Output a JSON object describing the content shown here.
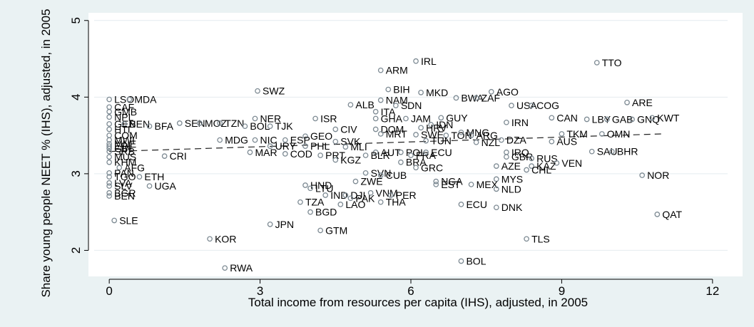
{
  "chart_data": {
    "type": "scatter",
    "title": "",
    "xlabel": "Total income from resources per capita (IHS), adjusted, in 2005",
    "ylabel": "Share young people NEET % (IHS), adjusted, in 2005",
    "xlim": [
      -0.3,
      12.3
    ],
    "ylim": [
      1.66,
      5.1
    ],
    "xticks": [
      0,
      3,
      6,
      9,
      12
    ],
    "yticks": [
      2,
      3,
      4,
      5
    ],
    "xtick_labels": [
      "0",
      "3",
      "6",
      "9",
      "12"
    ],
    "ytick_labels": [
      "2",
      "3",
      "4",
      "5"
    ],
    "grid": "horizontal",
    "fit_line": {
      "style": "dashed",
      "x": [
        0,
        11
      ],
      "y": [
        3.29,
        3.52
      ]
    },
    "points": [
      {
        "label": "IRL",
        "x": 6.1,
        "y": 4.47
      },
      {
        "label": "TTO",
        "x": 9.7,
        "y": 4.45
      },
      {
        "label": "ARM",
        "x": 5.4,
        "y": 4.35
      },
      {
        "label": "SWZ",
        "x": 2.95,
        "y": 4.08
      },
      {
        "label": "BIH",
        "x": 5.55,
        "y": 4.1
      },
      {
        "label": "MKD",
        "x": 6.2,
        "y": 4.06
      },
      {
        "label": "AGO",
        "x": 7.6,
        "y": 4.07
      },
      {
        "label": "LSO",
        "x": 0.0,
        "y": 3.97
      },
      {
        "label": "MDA",
        "x": 0.4,
        "y": 3.97
      },
      {
        "label": "BWA",
        "x": 6.9,
        "y": 3.99
      },
      {
        "label": "ZAF",
        "x": 7.3,
        "y": 3.99
      },
      {
        "label": "NAM",
        "x": 5.4,
        "y": 3.96
      },
      {
        "label": "ARE",
        "x": 10.3,
        "y": 3.93
      },
      {
        "label": "ALB",
        "x": 4.8,
        "y": 3.9
      },
      {
        "label": "SDN",
        "x": 5.7,
        "y": 3.89
      },
      {
        "label": "CAF",
        "x": 0.0,
        "y": 3.87
      },
      {
        "label": "USA",
        "x": 8.0,
        "y": 3.89
      },
      {
        "label": "COG",
        "x": 8.4,
        "y": 3.89
      },
      {
        "label": "GMB",
        "x": 0.0,
        "y": 3.81
      },
      {
        "label": "ITA",
        "x": 5.3,
        "y": 3.81
      },
      {
        "label": "NPL",
        "x": 0.0,
        "y": 3.74
      },
      {
        "label": "GHA",
        "x": 5.3,
        "y": 3.72
      },
      {
        "label": "JAM",
        "x": 5.9,
        "y": 3.72
      },
      {
        "label": "MDG",
        "x": 2.2,
        "y": 3.44
      },
      {
        "label": "GUY",
        "x": 6.6,
        "y": 3.73
      },
      {
        "label": "CAN",
        "x": 8.8,
        "y": 3.73
      },
      {
        "label": "LBY",
        "x": 9.5,
        "y": 3.71
      },
      {
        "label": "GAB",
        "x": 9.9,
        "y": 3.71
      },
      {
        "label": "GNQ",
        "x": 10.4,
        "y": 3.71
      },
      {
        "label": "KWT",
        "x": 10.8,
        "y": 3.73
      },
      {
        "label": "NER",
        "x": 2.9,
        "y": 3.72
      },
      {
        "label": "ISR",
        "x": 4.1,
        "y": 3.72
      },
      {
        "label": "GEN",
        "x": 0.0,
        "y": 3.65
      },
      {
        "label": "SEN",
        "x": 1.4,
        "y": 3.66
      },
      {
        "label": "MOZ",
        "x": 1.8,
        "y": 3.66
      },
      {
        "label": "BEN",
        "x": 0.3,
        "y": 3.65
      },
      {
        "label": "TZN",
        "x": 2.2,
        "y": 3.66
      },
      {
        "label": "BOL",
        "x": 2.7,
        "y": 3.62
      },
      {
        "label": "IRN",
        "x": 7.9,
        "y": 3.67
      },
      {
        "label": "BFA",
        "x": 0.8,
        "y": 3.62
      },
      {
        "label": "TJK",
        "x": 3.2,
        "y": 3.62
      },
      {
        "label": "IDN",
        "x": 6.4,
        "y": 3.64
      },
      {
        "label": "HRV",
        "x": 6.2,
        "y": 3.6
      },
      {
        "label": "CIV",
        "x": 4.5,
        "y": 3.58
      },
      {
        "label": "DOM",
        "x": 5.3,
        "y": 3.58
      },
      {
        "label": "HTI",
        "x": 0.0,
        "y": 3.58
      },
      {
        "label": "TKM",
        "x": 9.0,
        "y": 3.52
      },
      {
        "label": "OMN",
        "x": 9.8,
        "y": 3.52
      },
      {
        "label": "COM",
        "x": 0.0,
        "y": 3.5
      },
      {
        "label": "GEO",
        "x": 3.9,
        "y": 3.49
      },
      {
        "label": "MRT",
        "x": 5.4,
        "y": 3.52
      },
      {
        "label": "SWE",
        "x": 6.1,
        "y": 3.51
      },
      {
        "label": "TON",
        "x": 6.7,
        "y": 3.5
      },
      {
        "label": "MNG",
        "x": 7.0,
        "y": 3.54
      },
      {
        "label": "ARG",
        "x": 7.2,
        "y": 3.5
      },
      {
        "label": "MWI",
        "x": 0.0,
        "y": 3.44
      },
      {
        "label": "NIC",
        "x": 2.9,
        "y": 3.44
      },
      {
        "label": "ESP",
        "x": 3.5,
        "y": 3.44
      },
      {
        "label": "SVK",
        "x": 4.5,
        "y": 3.42
      },
      {
        "label": "TUN",
        "x": 6.3,
        "y": 3.43
      },
      {
        "label": "NZL",
        "x": 7.3,
        "y": 3.41
      },
      {
        "label": "DZA",
        "x": 7.8,
        "y": 3.44
      },
      {
        "label": "AUS",
        "x": 8.8,
        "y": 3.42
      },
      {
        "label": "MNE",
        "x": 0.0,
        "y": 3.39
      },
      {
        "label": "URY",
        "x": 3.2,
        "y": 3.36
      },
      {
        "label": "PHL",
        "x": 3.9,
        "y": 3.36
      },
      {
        "label": "MLI",
        "x": 4.7,
        "y": 3.35
      },
      {
        "label": "ERI",
        "x": 0.0,
        "y": 3.36
      },
      {
        "label": "MAR",
        "x": 2.8,
        "y": 3.28
      },
      {
        "label": "COD",
        "x": 3.5,
        "y": 3.26
      },
      {
        "label": "AUT",
        "x": 5.3,
        "y": 3.28
      },
      {
        "label": "GIN",
        "x": 0.0,
        "y": 3.33
      },
      {
        "label": "CRI",
        "x": 1.1,
        "y": 3.23
      },
      {
        "label": "PRT",
        "x": 4.2,
        "y": 3.24
      },
      {
        "label": "BLR",
        "x": 5.1,
        "y": 3.24
      },
      {
        "label": "POL",
        "x": 5.8,
        "y": 3.28
      },
      {
        "label": "FRA",
        "x": 6.0,
        "y": 3.24
      },
      {
        "label": "ECU",
        "x": 6.3,
        "y": 3.28
      },
      {
        "label": "IRQ",
        "x": 7.9,
        "y": 3.28
      },
      {
        "label": "GBR",
        "x": 7.9,
        "y": 3.22
      },
      {
        "label": "SAU",
        "x": 9.6,
        "y": 3.29
      },
      {
        "label": "BHR",
        "x": 10.0,
        "y": 3.29
      },
      {
        "label": "SRB",
        "x": 0.0,
        "y": 3.29
      },
      {
        "label": "MUS",
        "x": 0.0,
        "y": 3.22
      },
      {
        "label": "RUS",
        "x": 8.4,
        "y": 3.2
      },
      {
        "label": "KGZ",
        "x": 4.5,
        "y": 3.18
      },
      {
        "label": "KHM",
        "x": 0.0,
        "y": 3.15
      },
      {
        "label": "BRA",
        "x": 5.8,
        "y": 3.15
      },
      {
        "label": "VEN",
        "x": 8.9,
        "y": 3.14
      },
      {
        "label": "AFG",
        "x": 0.2,
        "y": 3.08
      },
      {
        "label": "AZE",
        "x": 7.7,
        "y": 3.1
      },
      {
        "label": "KAZ",
        "x": 8.4,
        "y": 3.1
      },
      {
        "label": "GRC",
        "x": 6.1,
        "y": 3.08
      },
      {
        "label": "CHL",
        "x": 8.3,
        "y": 3.05
      },
      {
        "label": "NOR",
        "x": 10.6,
        "y": 2.98
      },
      {
        "label": "PAN",
        "x": 0.0,
        "y": 3.01
      },
      {
        "label": "SVN",
        "x": 5.1,
        "y": 3.01
      },
      {
        "label": "CUB",
        "x": 5.4,
        "y": 2.98
      },
      {
        "label": "TGO",
        "x": 0.0,
        "y": 2.96
      },
      {
        "label": "ETH",
        "x": 0.6,
        "y": 2.96
      },
      {
        "label": "MYS",
        "x": 7.7,
        "y": 2.93
      },
      {
        "label": "ZWE",
        "x": 4.9,
        "y": 2.9
      },
      {
        "label": "NGA",
        "x": 6.5,
        "y": 2.9
      },
      {
        "label": "LVA",
        "x": 0.0,
        "y": 2.88
      },
      {
        "label": "HND",
        "x": 3.9,
        "y": 2.85
      },
      {
        "label": "EST",
        "x": 6.5,
        "y": 2.86
      },
      {
        "label": "MEX",
        "x": 7.2,
        "y": 2.86
      },
      {
        "label": "SLV",
        "x": 0.0,
        "y": 2.84
      },
      {
        "label": "UGA",
        "x": 0.8,
        "y": 2.84
      },
      {
        "label": "LTU",
        "x": 4.0,
        "y": 2.81
      },
      {
        "label": "NLD",
        "x": 7.7,
        "y": 2.8
      },
      {
        "label": "VNM",
        "x": 5.2,
        "y": 2.75
      },
      {
        "label": "BGR",
        "x": 0.0,
        "y": 2.75
      },
      {
        "label": "IND",
        "x": 4.3,
        "y": 2.72
      },
      {
        "label": "DJI",
        "x": 4.7,
        "y": 2.72
      },
      {
        "label": "PER",
        "x": 5.6,
        "y": 2.72
      },
      {
        "label": "BEN2",
        "x": 0.0,
        "y": 2.71
      },
      {
        "label": "PAK",
        "x": 4.8,
        "y": 2.68
      },
      {
        "label": "THA",
        "x": 5.4,
        "y": 2.63
      },
      {
        "label": "TZA",
        "x": 3.8,
        "y": 2.63
      },
      {
        "label": "LAO",
        "x": 4.6,
        "y": 2.6
      },
      {
        "label": "ECU2",
        "x": 7.0,
        "y": 2.6
      },
      {
        "label": "DNK",
        "x": 7.7,
        "y": 2.56
      },
      {
        "label": "BGD",
        "x": 4.0,
        "y": 2.5
      },
      {
        "label": "QAT",
        "x": 10.9,
        "y": 2.47
      },
      {
        "label": "SLE",
        "x": 0.1,
        "y": 2.39
      },
      {
        "label": "JPN",
        "x": 3.2,
        "y": 2.34
      },
      {
        "label": "GTM",
        "x": 4.2,
        "y": 2.26
      },
      {
        "label": "KOR",
        "x": 2.0,
        "y": 2.15
      },
      {
        "label": "TLS",
        "x": 8.3,
        "y": 2.15
      },
      {
        "label": "BOL2",
        "x": 7.0,
        "y": 1.86
      },
      {
        "label": "RWA",
        "x": 2.3,
        "y": 1.77
      }
    ]
  }
}
